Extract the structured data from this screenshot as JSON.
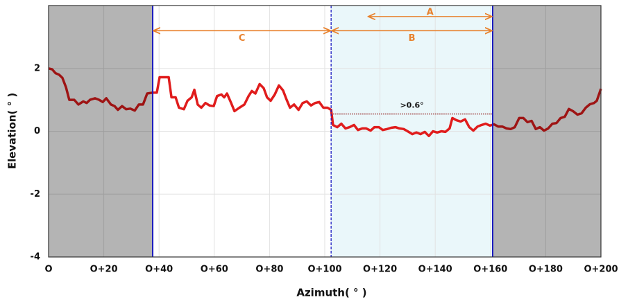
{
  "chart_data": {
    "type": "line",
    "x_label": "Azimuth( ° )",
    "y_label": "Elevation( ° )",
    "color": "#e01c1c",
    "xlim": [
      0,
      200
    ],
    "ylim": [
      -4,
      4
    ],
    "xticks": [
      {
        "value": 0,
        "label": "O"
      },
      {
        "value": 20,
        "label": "O+20"
      },
      {
        "value": 40,
        "label": "O+40"
      },
      {
        "value": 60,
        "label": "O+60"
      },
      {
        "value": 80,
        "label": "O+80"
      },
      {
        "value": 100,
        "label": "O+100"
      },
      {
        "value": 120,
        "label": "O+120"
      },
      {
        "value": 140,
        "label": "O+140"
      },
      {
        "value": 160,
        "label": "O+160"
      },
      {
        "value": 180,
        "label": "O+180"
      },
      {
        "value": 200,
        "label": "O+200"
      }
    ],
    "yticks": [
      -4,
      -2,
      0,
      2
    ],
    "grid": true,
    "x": [
      0,
      1.3,
      2.5,
      3.8,
      5,
      6.3,
      7.5,
      9.3,
      10.8,
      12.6,
      13.8,
      15,
      16.8,
      18.3,
      19.6,
      20.9,
      22.6,
      23.9,
      25.1,
      26.6,
      28.1,
      29.6,
      31.2,
      32.7,
      34.2,
      35.7,
      37.7,
      39.2,
      40.2,
      42.2,
      43.5,
      44.5,
      46,
      47.2,
      49,
      50.3,
      51.8,
      52.8,
      54,
      55.3,
      56.8,
      58.3,
      59.8,
      61,
      62.6,
      63.6,
      64.6,
      66.1,
      67.3,
      69.1,
      70.9,
      72.4,
      73.6,
      74.9,
      76.4,
      77.9,
      79.1,
      80.4,
      81.9,
      83.4,
      84.9,
      86.2,
      87.4,
      88.9,
      90.5,
      92,
      93.5,
      95,
      96.5,
      98,
      99.5,
      101,
      102.3,
      103,
      104.5,
      106,
      107.5,
      109,
      110.6,
      112,
      113.6,
      115,
      116.6,
      118,
      119.6,
      121,
      122.6,
      124,
      125.6,
      127,
      128.6,
      130,
      131.7,
      133.2,
      134.7,
      136.2,
      137.7,
      139.2,
      140.7,
      142.2,
      143.7,
      145.2,
      146.2,
      147.7,
      149.2,
      150.8,
      152.3,
      153.8,
      155.3,
      156.8,
      158.3,
      159.8,
      161.3,
      162.8,
      164.3,
      165.8,
      167.3,
      168.8,
      170.4,
      171.9,
      173.4,
      174.9,
      176.4,
      177.9,
      179.4,
      180.9,
      182.4,
      183.9,
      185.4,
      186.9,
      188.4,
      189.9,
      191.5,
      193,
      194.5,
      196,
      197.5,
      198.5,
      200
    ],
    "values": [
      2.0,
      1.97,
      1.85,
      1.8,
      1.7,
      1.4,
      1.0,
      1.0,
      0.85,
      0.95,
      0.9,
      1.0,
      1.05,
      1.0,
      0.93,
      1.05,
      0.85,
      0.8,
      0.68,
      0.8,
      0.7,
      0.72,
      0.66,
      0.85,
      0.85,
      1.2,
      1.23,
      1.23,
      1.72,
      1.72,
      1.72,
      1.08,
      1.08,
      0.75,
      0.7,
      0.97,
      1.08,
      1.32,
      0.85,
      0.75,
      0.9,
      0.82,
      0.8,
      1.12,
      1.17,
      1.08,
      1.2,
      0.9,
      0.64,
      0.75,
      0.85,
      1.12,
      1.28,
      1.2,
      1.5,
      1.37,
      1.08,
      0.97,
      1.17,
      1.46,
      1.3,
      1.0,
      0.75,
      0.85,
      0.68,
      0.9,
      0.95,
      0.82,
      0.9,
      0.93,
      0.75,
      0.75,
      0.68,
      0.2,
      0.13,
      0.24,
      0.09,
      0.13,
      0.2,
      0.04,
      0.09,
      0.09,
      0.02,
      0.13,
      0.13,
      0.04,
      0.07,
      0.11,
      0.13,
      0.09,
      0.07,
      0.0,
      -0.09,
      -0.04,
      -0.09,
      -0.02,
      -0.15,
      0.0,
      -0.04,
      0.0,
      -0.02,
      0.09,
      0.42,
      0.35,
      0.31,
      0.38,
      0.13,
      0.02,
      0.15,
      0.2,
      0.24,
      0.18,
      0.22,
      0.15,
      0.15,
      0.09,
      0.07,
      0.13,
      0.42,
      0.42,
      0.29,
      0.33,
      0.07,
      0.13,
      0.02,
      0.09,
      0.24,
      0.26,
      0.42,
      0.46,
      0.71,
      0.64,
      0.53,
      0.57,
      0.75,
      0.86,
      0.9,
      0.97,
      1.35
    ],
    "shaded_regions": [
      {
        "x": [
          0,
          37.7
        ],
        "color": "#b4b4b4",
        "over_line": true
      },
      {
        "x": [
          160.8,
          200
        ],
        "color": "#b4b4b4",
        "over_line": true
      },
      {
        "x": [
          102.3,
          160.8
        ],
        "color": "#eaf7fa",
        "over_line": false
      }
    ],
    "boundaries": [
      {
        "x": 37.7,
        "style": "solid"
      },
      {
        "x": 102.3,
        "style": "dashed"
      },
      {
        "x": 160.8,
        "style": "solid"
      }
    ],
    "boundary_color": "#1a1ac0",
    "annotation_color": "#e8822e",
    "annotations": [
      {
        "text": "A",
        "x": [
          115.5,
          160.8
        ],
        "y": 3.65,
        "label_side": "above"
      },
      {
        "text": "B",
        "x": [
          102.3,
          160.8
        ],
        "y": 3.2,
        "label_side": "below"
      },
      {
        "text": "C",
        "x": [
          37.7,
          102.3
        ],
        "y": 3.2,
        "label_side": "below"
      }
    ],
    "threshold": {
      "text": ">0.6°",
      "x": [
        102.3,
        160.8
      ],
      "y": 0.55,
      "color": "#8b1010"
    }
  }
}
